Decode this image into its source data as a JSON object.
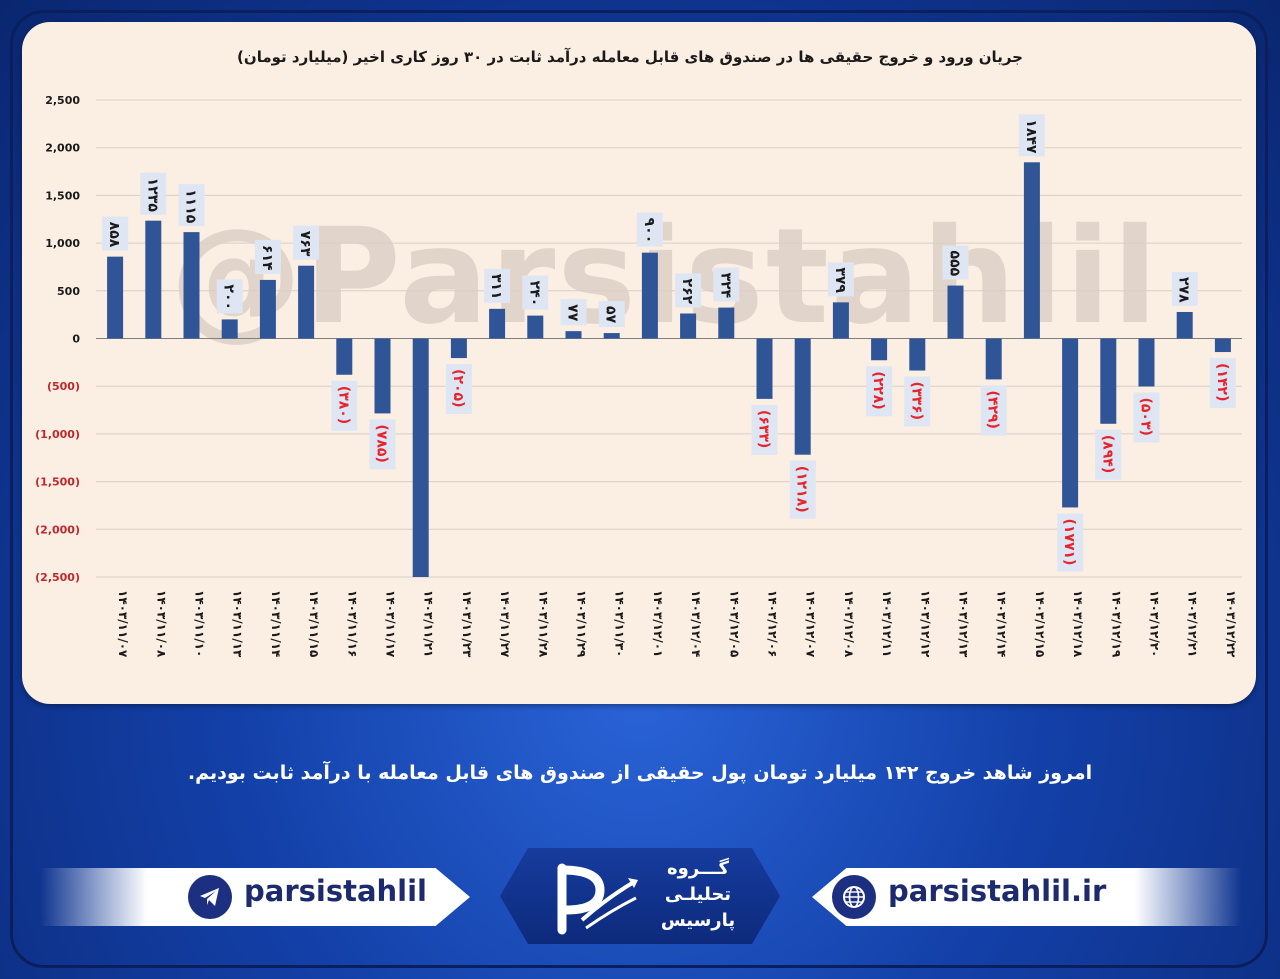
{
  "chart_data": {
    "type": "bar",
    "title": "جریان ورود و خروج حقیقی ها در صندوق های قابل معامله درآمد ثابت در ۳۰ روز کاری اخیر (میلیارد تومان)",
    "ylim": [
      -2500,
      2500
    ],
    "yticks": [
      2500,
      2000,
      1500,
      1000,
      500,
      0,
      -500,
      -1000,
      -1500,
      -2000,
      -2500
    ],
    "ytick_labels": [
      "2,500",
      "2,000",
      "1,500",
      "1,000",
      "500",
      "0",
      "(500)",
      "(1,000)",
      "(1,500)",
      "(2,000)",
      "(2,500)"
    ],
    "categories": [
      "۱۴۰۳/۱۱/۰۷",
      "۱۴۰۳/۱۱/۰۸",
      "۱۴۰۳/۱۱/۱۰",
      "۱۴۰۳/۱۱/۱۳",
      "۱۴۰۳/۱۱/۱۴",
      "۱۴۰۳/۱۱/۱۵",
      "۱۴۰۳/۱۱/۱۶",
      "۱۴۰۳/۱۱/۱۷",
      "۱۴۰۳/۱۱/۲۱",
      "۱۴۰۳/۱۱/۲۳",
      "۱۴۰۳/۱۱/۲۷",
      "۱۴۰۳/۱۱/۲۸",
      "۱۴۰۳/۱۱/۲۹",
      "۱۴۰۳/۱۱/۳۰",
      "۱۴۰۳/۱۲/۰۱",
      "۱۴۰۳/۱۲/۰۴",
      "۱۴۰۳/۱۲/۰۵",
      "۱۴۰۳/۱۲/۰۶",
      "۱۴۰۳/۱۲/۰۷",
      "۱۴۰۳/۱۲/۰۸",
      "۱۴۰۳/۱۲/۱۱",
      "۱۴۰۳/۱۲/۱۲",
      "۱۴۰۳/۱۲/۱۳",
      "۱۴۰۳/۱۲/۱۴",
      "۱۴۰۳/۱۲/۱۵",
      "۱۴۰۳/۱۲/۱۸",
      "۱۴۰۳/۱۲/۱۹",
      "۱۴۰۳/۱۲/۲۰",
      "۱۴۰۳/۱۲/۲۱",
      "۱۴۰۳/۱۲/۲۲"
    ],
    "values": [
      858,
      1235,
      1115,
      200,
      614,
      763,
      -380,
      -785,
      -2520,
      -205,
      311,
      240,
      77,
      57,
      900,
      262,
      324,
      -633,
      -1218,
      379,
      -228,
      -336,
      555,
      -429,
      1847,
      -1771,
      -894,
      -503,
      278,
      -142
    ],
    "data_labels": [
      "۸۵۸",
      "۱۲۳۵",
      "۱۱۱۵",
      "۲۰۰",
      "۶۱۴",
      "۷۶۳",
      "(۳۸۰)",
      "(۷۸۵)",
      "",
      "(۲۰۵)",
      "۳۱۱",
      "۲۴۰",
      "۷۷",
      "۵۷",
      "۹۰۰",
      "۲۶۲",
      "۳۲۴",
      "(۶۳۳)",
      "(۱۲۱۸)",
      "۳۷۹",
      "(۲۲۸)",
      "(۳۳۶)",
      "۵۵۵",
      "(۴۲۹)",
      "۱۸۴۷",
      "(۱۷۷۱)",
      "(۸۹۴)",
      "(۵۰۳)",
      "۲۷۸",
      "(۱۴۲)"
    ],
    "bar_color": "#2f5597",
    "negative_label_color": "#e8232a",
    "grid": true
  },
  "watermark": "@Parsistahlil",
  "caption": "امروز شاهد خروج ۱۴۲ میلیارد تومان پول حقیقی از صندوق های قابل معامله با درآمد ثابت بودیم.",
  "footer": {
    "telegram_handle": "parsistahlil",
    "telegram_icon": "telegram-icon",
    "website": "parsistahlil.ir",
    "web_icon": "globe-icon",
    "logo_line1": "گـــروه",
    "logo_line2": "تحلیلـی",
    "logo_line3": "پارسیس"
  }
}
